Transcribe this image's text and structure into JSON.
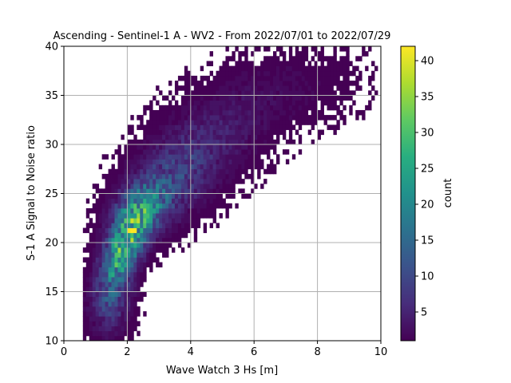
{
  "chart_data": {
    "type": "heatmap",
    "title": "Ascending - Sentinel-1 A - WV2 - From 2022/07/01 to 2022/07/29",
    "xlabel": "Wave Watch 3 Hs [m]",
    "ylabel": "S-1 A Signal to Noise ratio",
    "xlim": [
      0,
      10
    ],
    "ylim": [
      10,
      40
    ],
    "xticks": [
      0,
      2,
      4,
      6,
      8,
      10
    ],
    "yticks": [
      10,
      15,
      20,
      25,
      30,
      35,
      40
    ],
    "xtick_labels": [
      "0",
      "2",
      "4",
      "6",
      "8",
      "10"
    ],
    "ytick_labels": [
      "10",
      "15",
      "20",
      "25",
      "30",
      "35",
      "40"
    ],
    "grid": true,
    "colormap": "viridis",
    "colorbar": {
      "label": "count",
      "min": 1,
      "max": 42,
      "ticks": [
        5,
        10,
        15,
        20,
        25,
        30,
        35,
        40
      ],
      "tick_labels": [
        "5",
        "10",
        "15",
        "20",
        "25",
        "30",
        "35",
        "40"
      ]
    },
    "bin_size": {
      "x": 0.1,
      "y": 0.5
    },
    "peak": {
      "x": 2.2,
      "y": 21.4,
      "count": 42
    },
    "density_clusters": [
      {
        "x": 1.9,
        "y": 19.5,
        "count": 26,
        "sx": 0.45,
        "sy": 2.6,
        "rho": 0.55
      },
      {
        "x": 2.5,
        "y": 23.5,
        "count": 16,
        "sx": 0.6,
        "sy": 2.0,
        "rho": 0.3
      },
      {
        "x": 1.5,
        "y": 14.0,
        "count": 8,
        "sx": 0.4,
        "sy": 2.2,
        "rho": 0.2
      },
      {
        "x": 3.6,
        "y": 27.0,
        "count": 7,
        "sx": 0.9,
        "sy": 2.8,
        "rho": 0.35
      },
      {
        "x": 4.8,
        "y": 31.0,
        "count": 3,
        "sx": 1.2,
        "sy": 3.0,
        "rho": 0.4
      },
      {
        "x": 6.8,
        "y": 35.5,
        "count": 1.5,
        "sx": 1.6,
        "sy": 2.5,
        "rho": 0.3
      }
    ]
  }
}
